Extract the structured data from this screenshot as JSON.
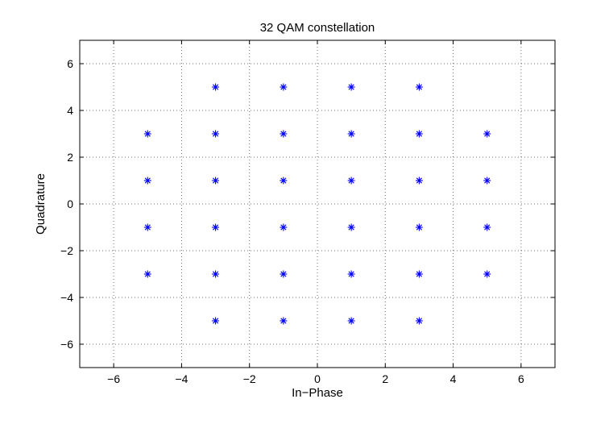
{
  "chart_data": {
    "type": "scatter",
    "title": "32 QAM constellation",
    "xlabel": "In−Phase",
    "ylabel": "Quadrature",
    "xlim": [
      -7,
      7
    ],
    "ylim": [
      -7,
      7
    ],
    "xticks": [
      -6,
      -4,
      -2,
      0,
      2,
      4,
      6
    ],
    "yticks": [
      -6,
      -4,
      -2,
      0,
      2,
      4,
      6
    ],
    "xtick_labels": [
      "−6",
      "−4",
      "−2",
      "0",
      "2",
      "4",
      "6"
    ],
    "ytick_labels": [
      "−6",
      "−4",
      "−2",
      "0",
      "2",
      "4",
      "6"
    ],
    "grid": true,
    "marker": "asterisk",
    "marker_color": "#0000ff",
    "series": [
      {
        "points": [
          [
            -3,
            5
          ],
          [
            -1,
            5
          ],
          [
            1,
            5
          ],
          [
            3,
            5
          ],
          [
            -5,
            3
          ],
          [
            -3,
            3
          ],
          [
            -1,
            3
          ],
          [
            1,
            3
          ],
          [
            3,
            3
          ],
          [
            5,
            3
          ],
          [
            -5,
            1
          ],
          [
            -3,
            1
          ],
          [
            -1,
            1
          ],
          [
            1,
            1
          ],
          [
            3,
            1
          ],
          [
            5,
            1
          ],
          [
            -5,
            -1
          ],
          [
            -3,
            -1
          ],
          [
            -1,
            -1
          ],
          [
            1,
            -1
          ],
          [
            3,
            -1
          ],
          [
            5,
            -1
          ],
          [
            -5,
            -3
          ],
          [
            -3,
            -3
          ],
          [
            -1,
            -3
          ],
          [
            1,
            -3
          ],
          [
            3,
            -3
          ],
          [
            5,
            -3
          ],
          [
            -3,
            -5
          ],
          [
            -1,
            -5
          ],
          [
            1,
            -5
          ],
          [
            3,
            -5
          ]
        ]
      }
    ]
  }
}
